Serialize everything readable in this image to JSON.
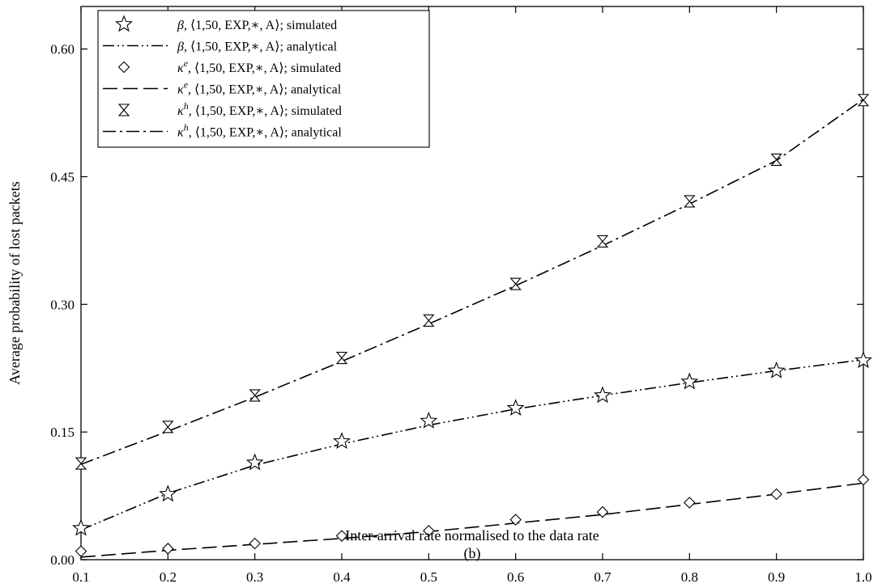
{
  "chart_data": {
    "type": "line",
    "title": "",
    "xlabel": "Inter-arrival rate normalised to the data rate",
    "ylabel": "Average probability of lost packets",
    "caption": "(b)",
    "xlim": [
      0.1,
      1.0
    ],
    "ylim": [
      0.0,
      0.65
    ],
    "x_ticks": [
      "0.1",
      "0.2",
      "0.3",
      "0.4",
      "0.5",
      "0.6",
      "0.7",
      "0.8",
      "0.9",
      "1.0"
    ],
    "y_ticks": [
      "0.00",
      "0.15",
      "0.30",
      "0.45",
      "0.60"
    ],
    "grid": false,
    "legend_position": "top-left",
    "x": [
      0.1,
      0.2,
      0.3,
      0.4,
      0.5,
      0.6,
      0.7,
      0.8,
      0.9,
      1.0
    ],
    "series": [
      {
        "name": "β, ⟨1,50, EXP,∗, A⟩; simulated",
        "sym": "β",
        "sup": "",
        "suffix": "simulated",
        "style": "marker",
        "marker": "star",
        "values": [
          0.037,
          0.077,
          0.114,
          0.139,
          0.163,
          0.178,
          0.193,
          0.209,
          0.222,
          0.234
        ]
      },
      {
        "name": "β, ⟨1,50, EXP,∗, A⟩; analytical",
        "sym": "β",
        "sup": "",
        "suffix": "analytical",
        "style": "line",
        "dash": "14 4 2 4 2 4",
        "values": [
          0.035,
          0.078,
          0.111,
          0.136,
          0.158,
          0.177,
          0.193,
          0.208,
          0.222,
          0.235
        ]
      },
      {
        "name": "κᵉ, ⟨1,50, EXP,∗, A⟩; simulated",
        "sym": "κ",
        "sup": "e",
        "suffix": "simulated",
        "style": "marker",
        "marker": "diamond",
        "values": [
          0.01,
          0.013,
          0.019,
          0.028,
          0.034,
          0.047,
          0.056,
          0.067,
          0.077,
          0.094
        ]
      },
      {
        "name": "κᵉ, ⟨1,50, EXP,∗, A⟩; analytical",
        "sym": "κ",
        "sup": "e",
        "suffix": "analytical",
        "style": "line",
        "dash": "18 7",
        "values": [
          0.003,
          0.011,
          0.018,
          0.025,
          0.033,
          0.043,
          0.053,
          0.065,
          0.077,
          0.09
        ]
      },
      {
        "name": "κʰ, ⟨1,50, EXP,∗, A⟩; simulated",
        "sym": "κ",
        "sup": "h",
        "suffix": "simulated",
        "style": "marker",
        "marker": "hourglass",
        "values": [
          0.113,
          0.156,
          0.193,
          0.237,
          0.281,
          0.324,
          0.374,
          0.421,
          0.47,
          0.54
        ]
      },
      {
        "name": "κʰ, ⟨1,50, EXP,∗, A⟩; analytical",
        "sym": "κ",
        "sup": "h",
        "suffix": "analytical",
        "style": "line",
        "dash": "16 5 3 5",
        "values": [
          0.112,
          0.151,
          0.191,
          0.233,
          0.277,
          0.322,
          0.369,
          0.418,
          0.469,
          0.541
        ]
      }
    ]
  }
}
